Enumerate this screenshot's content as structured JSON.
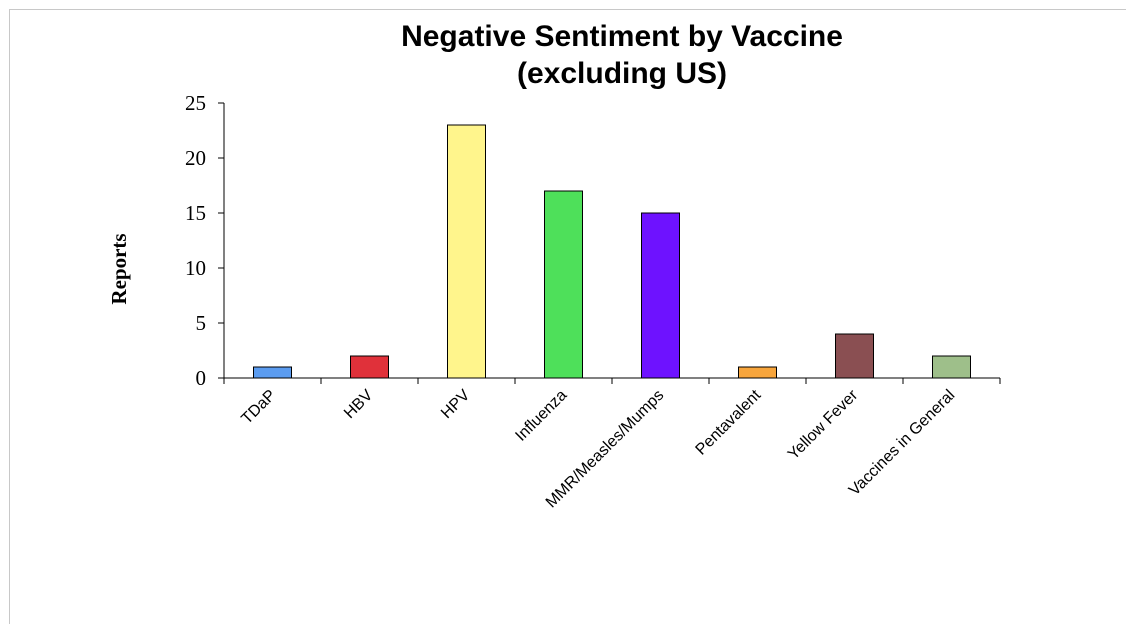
{
  "chart_data": {
    "type": "bar",
    "title": "Negative Sentiment by Vaccine",
    "subtitle": "(excluding US)",
    "xlabel": "",
    "ylabel": "Reports",
    "ylim": [
      0,
      25
    ],
    "yticks": [
      "0",
      "5",
      "10",
      "15",
      "20",
      "25"
    ],
    "grid": false,
    "categories": [
      "TDaP",
      "HBV",
      "HPV",
      "Influenza",
      "MMR/Measles/Mumps",
      "Pentavalent",
      "Yellow Fever",
      "Vaccines in General"
    ],
    "values": [
      1,
      2,
      23,
      17,
      15,
      1,
      4,
      2
    ],
    "colors": [
      "#5b9cf0",
      "#e0313a",
      "#fff58c",
      "#4ee05a",
      "#6e12ff",
      "#f7a53c",
      "#8a4f52",
      "#9ebf8a"
    ]
  }
}
